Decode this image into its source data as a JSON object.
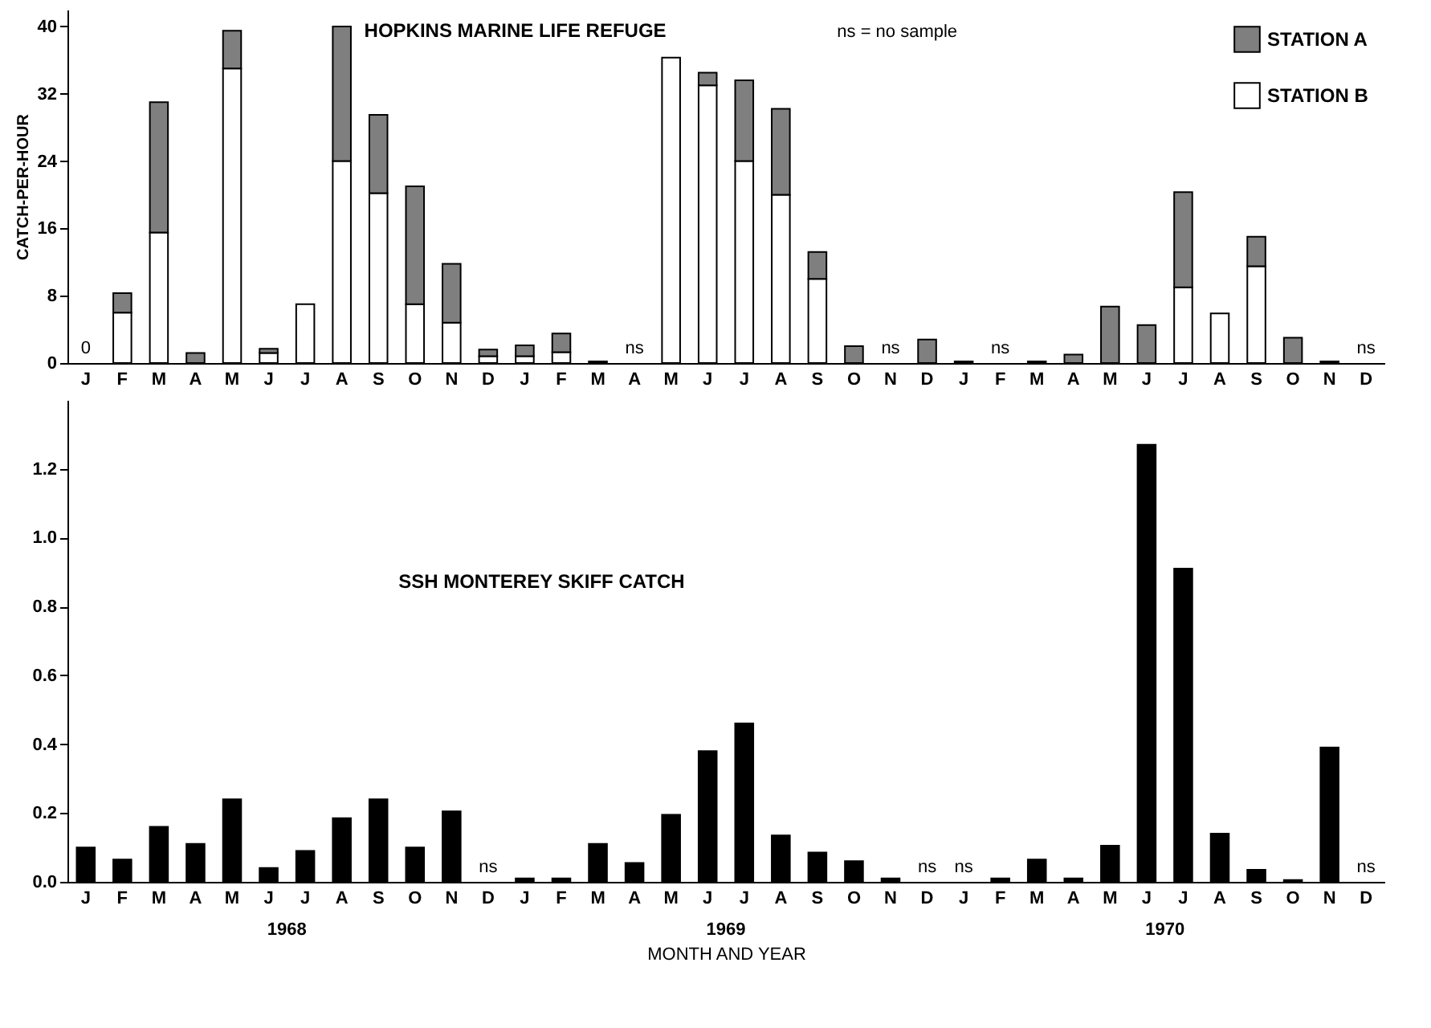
{
  "chart_data": [
    {
      "type": "bar",
      "title": "HOPKINS MARINE LIFE REFUGE",
      "ylabel": "CATCH-PER-HOUR",
      "stacked": true,
      "legend": "top right",
      "grid": false,
      "ylim": [
        0,
        42
      ],
      "yticks": [
        0,
        8,
        16,
        24,
        32,
        40
      ],
      "annotations": [
        "ns = no sample"
      ],
      "categories": [
        "J",
        "F",
        "M",
        "A",
        "M",
        "J",
        "J",
        "A",
        "S",
        "O",
        "N",
        "D",
        "J",
        "F",
        "M",
        "A",
        "M",
        "J",
        "J",
        "A",
        "S",
        "O",
        "N",
        "D",
        "J",
        "F",
        "M",
        "A",
        "M",
        "J",
        "J",
        "A",
        "S",
        "O",
        "N",
        "D"
      ],
      "series": [
        {
          "name": "STATION B",
          "color": "#ffffff",
          "values": [
            0,
            6,
            15.5,
            0,
            35,
            1.2,
            7,
            24,
            20.2,
            7,
            4.8,
            0.8,
            0.8,
            1.3,
            0.2,
            null,
            36.3,
            33,
            24,
            20,
            10,
            0,
            null,
            0,
            0.2,
            null,
            0.2,
            0,
            0,
            0,
            9,
            5.9,
            11.5,
            0,
            0.2,
            null
          ],
          "value_labels": [
            "0",
            null,
            null,
            null,
            null,
            null,
            null,
            null,
            null,
            null,
            null,
            null,
            null,
            null,
            null,
            "ns",
            null,
            null,
            null,
            null,
            null,
            null,
            "ns",
            null,
            null,
            "ns",
            null,
            null,
            null,
            null,
            null,
            null,
            null,
            null,
            null,
            "ns"
          ]
        },
        {
          "name": "STATION A",
          "color": "#7f7f7f",
          "values": [
            0,
            2.3,
            15.5,
            1.2,
            4.5,
            0.5,
            0,
            16,
            9.3,
            14,
            7,
            0.8,
            1.3,
            2.2,
            0,
            null,
            0,
            1.5,
            9.6,
            10.2,
            3.2,
            2,
            null,
            2.8,
            0,
            null,
            0,
            1,
            6.7,
            4.5,
            11.3,
            0,
            3.5,
            3,
            0,
            null
          ]
        }
      ]
    },
    {
      "type": "bar",
      "title": "SSH MONTEREY SKIFF CATCH",
      "xlabel": "MONTH AND YEAR",
      "grid": false,
      "ylim": [
        0,
        1.4
      ],
      "yticks": [
        {
          "value": 0,
          "label": "0.0"
        },
        0.2,
        0.4,
        0.6,
        0.8,
        {
          "value": 1,
          "label": "1.0"
        },
        1.2
      ],
      "annotations": [
        "1968",
        "1969",
        "1970"
      ],
      "categories": [
        "J",
        "F",
        "M",
        "A",
        "M",
        "J",
        "J",
        "A",
        "S",
        "O",
        "N",
        "D",
        "J",
        "F",
        "M",
        "A",
        "M",
        "J",
        "J",
        "A",
        "S",
        "O",
        "N",
        "D",
        "J",
        "F",
        "M",
        "A",
        "M",
        "J",
        "J",
        "A",
        "S",
        "O",
        "N",
        "D"
      ],
      "series": [
        {
          "color": "#000000",
          "values": [
            0.1,
            0.065,
            0.16,
            0.11,
            0.24,
            0.04,
            0.09,
            0.185,
            0.24,
            0.1,
            0.205,
            null,
            0.01,
            0.01,
            0.11,
            0.055,
            0.195,
            0.38,
            0.46,
            0.135,
            0.085,
            0.06,
            0.01,
            null,
            null,
            0.01,
            0.065,
            0.01,
            0.105,
            1.27,
            0.91,
            0.14,
            0.035,
            0.005,
            0.39,
            null
          ],
          "value_labels": [
            null,
            null,
            null,
            null,
            null,
            null,
            null,
            null,
            null,
            null,
            null,
            "ns",
            null,
            null,
            null,
            null,
            null,
            null,
            null,
            null,
            null,
            null,
            null,
            "ns",
            "ns",
            null,
            null,
            null,
            null,
            null,
            null,
            null,
            null,
            null,
            null,
            "ns"
          ]
        }
      ]
    }
  ]
}
